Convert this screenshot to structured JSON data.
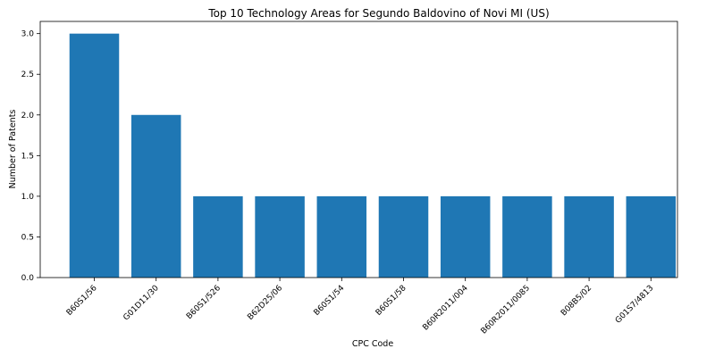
{
  "chart_data": {
    "type": "bar",
    "title": "Top 10 Technology Areas for Segundo Baldovino of Novi MI (US)",
    "xlabel": "CPC Code",
    "ylabel": "Number of Patents",
    "categories": [
      "B60S1/56",
      "G01D11/30",
      "B60S1/526",
      "B62D25/06",
      "B60S1/54",
      "B60S1/58",
      "B60R2011/004",
      "B60R2011/0085",
      "B08B5/02",
      "G01S7/4813"
    ],
    "values": [
      3,
      2,
      1,
      1,
      1,
      1,
      1,
      1,
      1,
      1
    ],
    "ylim": [
      0,
      3.15
    ],
    "yticks": [
      "0.0",
      "0.5",
      "1.0",
      "1.5",
      "2.0",
      "2.5",
      "3.0"
    ],
    "bar_color": "#1f77b4",
    "grid": false,
    "legend": "none"
  }
}
